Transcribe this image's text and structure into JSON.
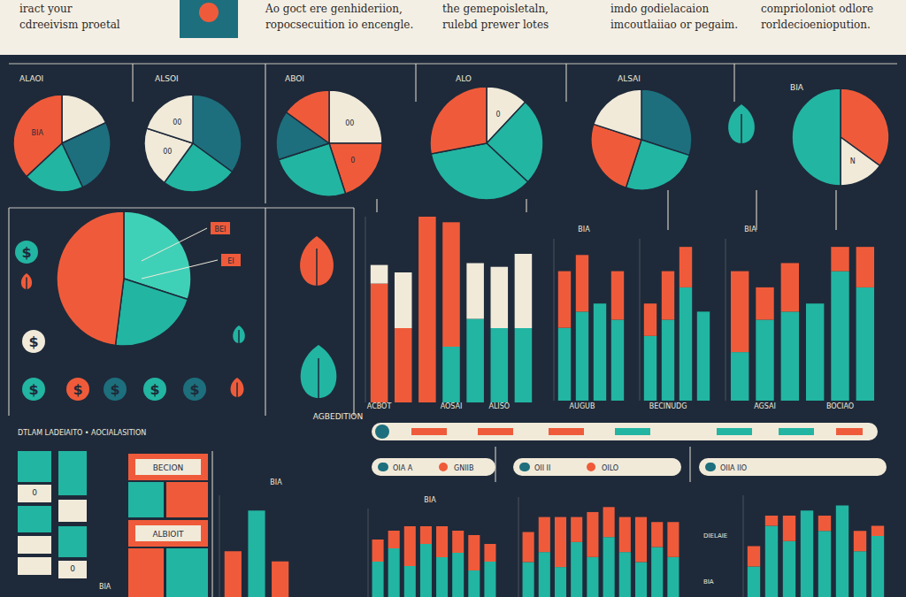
{
  "header": {
    "texts": [
      [
        "iract your",
        "cdreeivism proetal"
      ],
      [
        "Ao goct ere genhideriion,",
        "ropocsecuition io encengle."
      ],
      [
        "the gemepoisletaln,",
        "rulebd prewer lotes"
      ],
      [
        "imdo godielacaion",
        "imcoutlaiiao or pegaim."
      ],
      [
        "comprioloniot odlore",
        "rorldecioeniopution."
      ]
    ]
  },
  "labels": [
    "AGBEDITION",
    "DTLAM LADEIAITO • AOCIALASITION",
    "$"
  ],
  "table": {
    "labels": [
      "BECION",
      "ALBIOIT",
      "0",
      "0",
      "BIA"
    ]
  },
  "chart_data": [
    {
      "type": "pie",
      "title": "ALAOI",
      "values": [
        18,
        25,
        20,
        37
      ],
      "colors": [
        "#f1ead9",
        "#1d6f7d",
        "#22b5a2",
        "#ef5b3a"
      ],
      "annotations": [
        null,
        null,
        null,
        "BIA"
      ]
    },
    {
      "type": "pie",
      "title": "ALSOI",
      "values": [
        35,
        25,
        20,
        20
      ],
      "colors": [
        "#1d6f7d",
        "#22b5a2",
        "#f1ead9",
        "#f1ead9"
      ],
      "annotations": [
        null,
        null,
        "00",
        "00"
      ]
    },
    {
      "type": "pie",
      "title": "ABOI",
      "values": [
        25,
        20,
        25,
        15,
        15
      ],
      "colors": [
        "#f1ead9",
        "#ef5b3a",
        "#22b5a2",
        "#1d6f7d",
        "#ef5b3a"
      ],
      "annotations": [
        "00",
        "0",
        null,
        null,
        null
      ]
    },
    {
      "type": "pie",
      "title": "ALO",
      "values": [
        12,
        25,
        35,
        28
      ],
      "colors": [
        "#f1ead9",
        "#22b5a2",
        "#22b5a2",
        "#ef5b3a"
      ],
      "annotations": [
        "0",
        null,
        null,
        null
      ]
    },
    {
      "type": "pie",
      "title": "ALSAI",
      "values": [
        30,
        25,
        25,
        20
      ],
      "colors": [
        "#1d6f7d",
        "#22b5a2",
        "#ef5b3a",
        "#f1ead9"
      ],
      "annotations": []
    },
    {
      "type": "pie",
      "title": "BIA",
      "values": [
        35,
        15,
        50
      ],
      "colors": [
        "#ef5b3a",
        "#f1ead9",
        "#22b5a2"
      ],
      "annotations": [
        null,
        "N",
        null
      ]
    },
    {
      "type": "pie",
      "values": [
        30,
        22,
        48
      ],
      "colors": [
        "#3fd1b8",
        "#22b5a2",
        "#ef5b3a"
      ],
      "annotations": [
        "BEI",
        "EI"
      ]
    },
    {
      "type": "bar",
      "stacked": true,
      "tick_labels": "x",
      "ylim": [
        0,
        100
      ],
      "categories": [
        "ACBOT",
        null,
        null,
        "AOSAI",
        null,
        "ALISO",
        null
      ],
      "series": [
        {
          "color": "#22b5a2",
          "values": [
            0,
            0,
            0,
            30,
            45,
            40,
            40
          ]
        },
        {
          "color": "#ef5b3a",
          "values": [
            64,
            40,
            100,
            67,
            0,
            0,
            0
          ]
        },
        {
          "color": "#f1ead9",
          "values": [
            10,
            30,
            0,
            0,
            30,
            33,
            40
          ]
        }
      ]
    },
    {
      "type": "bar",
      "stacked": true,
      "tick_labels": "x",
      "title": "BIA",
      "ylim": [
        0,
        100
      ],
      "categories": [
        null,
        "AUGUB",
        null,
        null
      ],
      "series": [
        {
          "color": "#22b5a2",
          "values": [
            45,
            55,
            60,
            50
          ]
        },
        {
          "color": "#ef5b3a",
          "values": [
            35,
            35,
            0,
            30
          ]
        }
      ]
    },
    {
      "type": "bar",
      "stacked": true,
      "tick_labels": "x",
      "ylim": [
        0,
        100
      ],
      "categories": [
        null,
        "BECINUDG",
        null,
        null
      ],
      "series": [
        {
          "color": "#22b5a2",
          "values": [
            40,
            50,
            70,
            55
          ]
        },
        {
          "color": "#ef5b3a",
          "values": [
            20,
            30,
            25,
            0
          ]
        }
      ]
    },
    {
      "type": "bar",
      "stacked": true,
      "tick_labels": "x",
      "title": "BIA",
      "ylim": [
        0,
        100
      ],
      "categories": [
        null,
        "AGSAI",
        null,
        null,
        "BOCIAO",
        null
      ],
      "series": [
        {
          "color": "#22b5a2",
          "values": [
            30,
            50,
            55,
            60,
            80,
            70
          ]
        },
        {
          "color": "#ef5b3a",
          "values": [
            50,
            20,
            30,
            0,
            15,
            25
          ]
        }
      ]
    },
    {
      "type": "bar",
      "stacked": true,
      "tick_labels": false,
      "title": "BIA",
      "ylim": [
        0,
        100
      ],
      "legend": "top",
      "categories": [
        null,
        null,
        null,
        null,
        null,
        null,
        null,
        null
      ],
      "series": [
        {
          "name": "OIA A",
          "color": "#22b5a2",
          "values": [
            40,
            55,
            35,
            60,
            45,
            50,
            30,
            40
          ]
        },
        {
          "name": "GNIIB",
          "color": "#ef5b3a",
          "values": [
            25,
            20,
            45,
            20,
            35,
            25,
            40,
            20
          ]
        }
      ]
    },
    {
      "type": "bar",
      "stacked": true,
      "tick_labels": false,
      "ylim": [
        0,
        100
      ],
      "legend": "top",
      "categories": [
        null,
        null,
        null,
        null,
        null,
        null,
        null,
        null,
        null,
        null
      ],
      "series": [
        {
          "name": "OII II",
          "color": "#22b5a2",
          "values": [
            35,
            45,
            30,
            55,
            40,
            60,
            45,
            35,
            50,
            40
          ]
        },
        {
          "name": "OILO",
          "color": "#ef5b3a",
          "values": [
            30,
            35,
            50,
            25,
            45,
            30,
            35,
            45,
            25,
            35
          ]
        }
      ]
    },
    {
      "type": "bar",
      "stacked": true,
      "tick_labels": false,
      "ylim": [
        0,
        100
      ],
      "legend": "top",
      "annotations": [
        "DIELAIE",
        "BIA"
      ],
      "categories": [
        null,
        null,
        null,
        null,
        null,
        null,
        null,
        null
      ],
      "series": [
        {
          "name": "OIIA IIO",
          "color": "#22b5a2",
          "values": [
            30,
            70,
            55,
            85,
            65,
            90,
            45,
            60
          ]
        },
        {
          "color": "#ef5b3a",
          "values": [
            20,
            10,
            25,
            0,
            15,
            0,
            20,
            10
          ]
        }
      ]
    },
    {
      "type": "bar",
      "stacked": true,
      "tick_labels": false,
      "title": "BIA",
      "ylim": [
        0,
        100
      ],
      "categories": [
        null,
        null,
        null
      ],
      "series": [
        {
          "color": "#22b5a2",
          "values": [
            0,
            85,
            0
          ]
        },
        {
          "color": "#ef5b3a",
          "values": [
            45,
            0,
            35
          ]
        }
      ]
    }
  ]
}
